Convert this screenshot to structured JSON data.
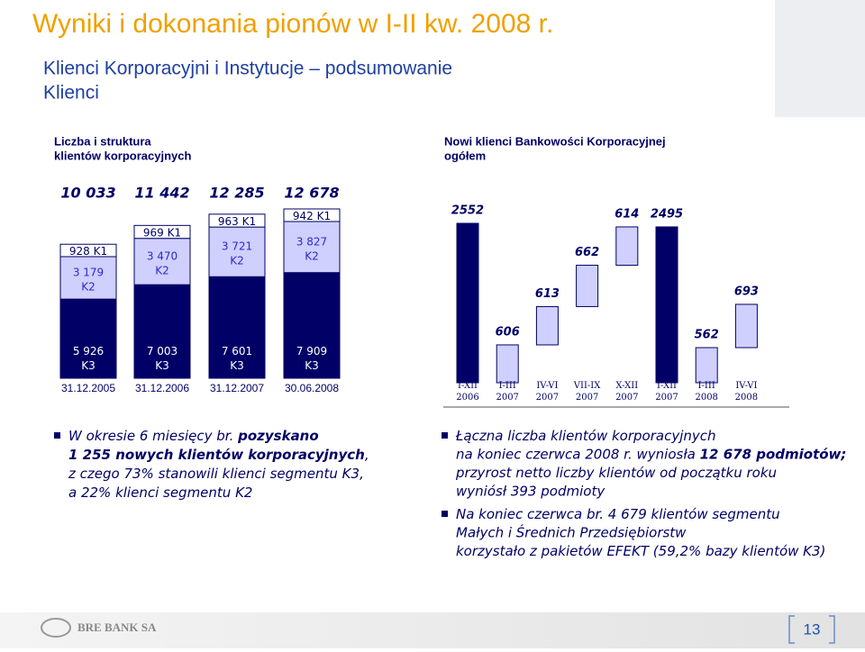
{
  "title": "Wyniki i dokonania pionów w I-II kw. 2008 r.",
  "subtitle": [
    "Klienci Korporacyjni i Instytucje – podsumowanie",
    "Klienci"
  ],
  "chart_data": [
    {
      "type": "stacked_bar",
      "title": [
        "Liczba i struktura",
        "klientów korporacyjnych"
      ],
      "categories": [
        "31.12.2005",
        "31.12.2006",
        "31.12.2007",
        "30.06.2008"
      ],
      "totals": [
        10033,
        11442,
        12285,
        12678
      ],
      "total_labels": [
        "10 033",
        "11 442",
        "12 285",
        "12 678"
      ],
      "series": [
        {
          "name": "K3",
          "color": "#000066",
          "label_color": "#ffffff",
          "values": [
            5926,
            7003,
            7601,
            7909
          ],
          "value_labels": [
            "5 926 K3",
            "7 003 K3",
            "7 601 K3",
            "7 909 K3"
          ],
          "label_lines": 2
        },
        {
          "name": "K2",
          "color": "#d0d0ff",
          "label_color": "#2a2ad0",
          "values": [
            3179,
            3470,
            3721,
            3827
          ],
          "value_labels": [
            "3 179 K2",
            "3 470 K2",
            "3 721 K2",
            "3 827 K2"
          ],
          "label_lines": 2
        },
        {
          "name": "K1",
          "color": "#ffffff",
          "label_color": "#000066",
          "values": [
            928,
            969,
            963,
            942
          ],
          "value_labels": [
            "928 K1",
            "969 K1",
            "963 K1",
            "942 K1"
          ],
          "label_lines": 1
        }
      ]
    },
    {
      "type": "waterfall",
      "title": [
        "Nowi klienci Bankowości Korporacyjnej",
        "ogółem"
      ],
      "categories": [
        "I-XII 2006",
        "I-III 2007",
        "IV-VI 2007",
        "VII-IX 2007",
        "X-XII 2007",
        "I-XII 2007",
        "I-III 2008",
        "IV-VI 2008"
      ],
      "values": [
        2552,
        606,
        613,
        662,
        614,
        2495,
        562,
        693
      ],
      "measure": [
        "total",
        "relative",
        "relative",
        "relative",
        "relative",
        "total",
        "relative",
        "relative"
      ],
      "total_color": "#000066",
      "relative_color": "#d0d0ff"
    }
  ],
  "bullets": [
    {
      "lines": [
        [
          {
            "text": "W okresie 6 miesięcy br. "
          },
          {
            "text": "pozyskano",
            "bold": true
          }
        ],
        [
          {
            "text": "1 255 nowych klientów korporacyjnych",
            "bold": true
          },
          {
            "text": ","
          }
        ],
        [
          {
            "text": "z czego 73% stanowili klienci segmentu K3,"
          }
        ],
        [
          {
            "text": "a 22% klienci segmentu K2"
          }
        ]
      ]
    },
    {
      "lines": [
        [
          {
            "text": "Łączna liczba klientów korporacyjnych"
          }
        ],
        [
          {
            "text": "na koniec czerwca 2008 r. wyniosła "
          },
          {
            "text": "12 678 podmiotów;",
            "bold": true
          }
        ],
        [
          {
            "text": "przyrost netto liczby klientów od początku roku"
          }
        ],
        [
          {
            "text": "wyniósł 393 podmioty"
          }
        ]
      ]
    },
    {
      "lines": [
        [
          {
            "text": "Na koniec czerwca br. 4 679 klientów segmentu"
          }
        ],
        [
          {
            "text": "Małych i Średnich Przedsiębiorstw"
          }
        ],
        [
          {
            "text": "korzystało z pakietów EFEKT (59,2% bazy klientów K3)"
          }
        ]
      ]
    }
  ],
  "footer": {
    "company": "BRE BANK SA",
    "page": "13"
  }
}
